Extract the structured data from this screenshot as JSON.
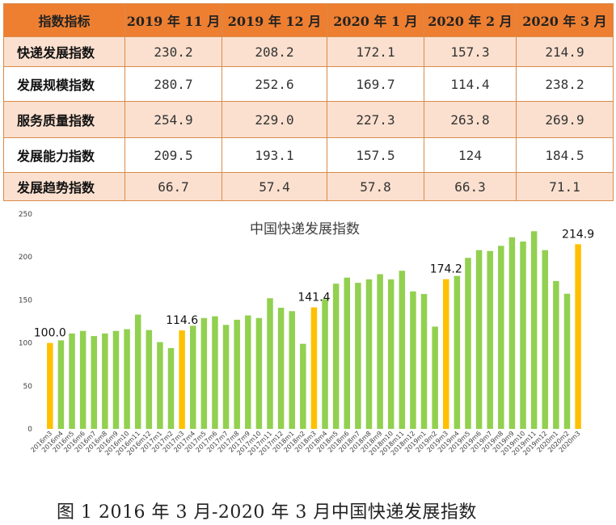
{
  "table": {
    "headers": [
      "指数指标",
      "2019 年 11 月",
      "2019 年 12 月",
      "2020 年 1 月",
      "2020 年 2 月",
      "2020 年 3 月"
    ],
    "rows": [
      {
        "label": "快递发展指数",
        "values": [
          "230.2",
          "208.2",
          "172.1",
          "157.3",
          "214.9"
        ]
      },
      {
        "label": "发展规模指数",
        "values": [
          "280.7",
          "252.6",
          "169.7",
          "114.4",
          "238.2"
        ]
      },
      {
        "label": "服务质量指数",
        "values": [
          "254.9",
          "229.0",
          "227.3",
          "263.8",
          "269.9"
        ]
      },
      {
        "label": "发展能力指数",
        "values": [
          "209.5",
          "193.1",
          "157.5",
          "124",
          "184.5"
        ]
      },
      {
        "label": "发展趋势指数",
        "values": [
          "66.7",
          "57.4",
          "57.8",
          "66.3",
          "71.1"
        ]
      }
    ],
    "colors": {
      "header_bg": "#ee7f31",
      "band_bg": "#fbe0cf"
    }
  },
  "chart_data": {
    "type": "bar",
    "title": "中国快递发展指数",
    "ylim": [
      0,
      250
    ],
    "yticks": [
      0,
      50,
      100,
      150,
      200,
      250
    ],
    "categories": [
      "2016m3",
      "2016m4",
      "2016m5",
      "2016m6",
      "2016m7",
      "2016m8",
      "2016m9",
      "2016m10",
      "2016m11",
      "2016m12",
      "2017m1",
      "2017m2",
      "2017m3",
      "2017m4",
      "2017m5",
      "2017m6",
      "2017m7",
      "2017m8",
      "2017m9",
      "2017m10",
      "2017m11",
      "2017m12",
      "2018m1",
      "2018m2",
      "2018m3",
      "2018m4",
      "2018m5",
      "2018m6",
      "2018m7",
      "2018m8",
      "2018m9",
      "2018m10",
      "2018m11",
      "2018m12",
      "2019m1",
      "2019m2",
      "2019m3",
      "2019m4",
      "2019m5",
      "2019m6",
      "2019m7",
      "2019m8",
      "2019m9",
      "2019m10",
      "2019m11",
      "2019m12",
      "2020m1",
      "2020m2",
      "2020m3"
    ],
    "values": [
      100.0,
      103,
      111,
      114,
      108,
      111,
      114,
      116,
      133,
      115,
      101,
      94,
      114.6,
      120,
      129,
      131,
      121,
      127,
      132,
      129,
      152,
      141,
      137,
      99,
      141.4,
      151,
      169,
      176,
      170,
      174,
      180,
      174,
      184,
      160,
      157,
      119,
      174.2,
      178,
      199,
      208,
      207,
      213,
      223,
      218,
      230,
      208,
      172.1,
      157.3,
      214.9
    ],
    "highlight_indices": [
      0,
      12,
      24,
      36,
      48
    ],
    "data_labels": {
      "0": "100.0",
      "12": "114.6",
      "24": "141.4",
      "36": "174.2",
      "48": "214.9"
    },
    "colors": {
      "bar": "#92d050",
      "highlight": "#ffc000"
    }
  },
  "caption": "图 1 2016 年 3 月-2020 年 3 月中国快递发展指数"
}
